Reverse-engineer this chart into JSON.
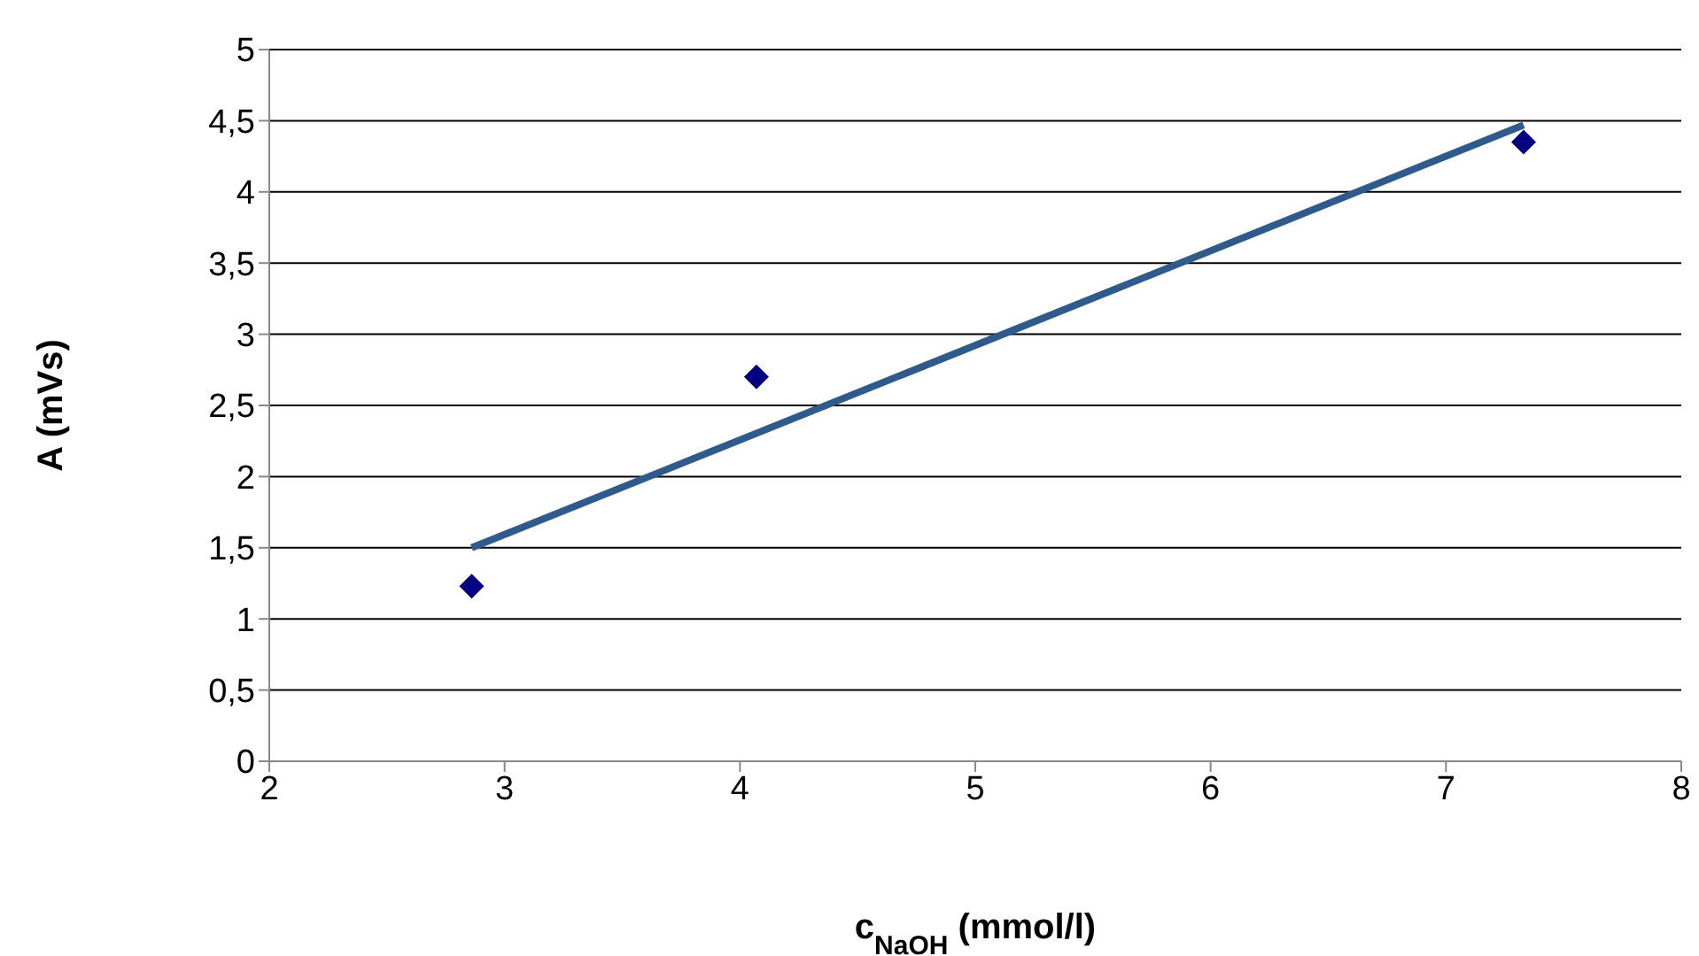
{
  "chart_data": {
    "type": "scatter",
    "xlabel": "c$_{NaOH}$ (mmol/l)",
    "ylabel": "A (mVs)",
    "xlim": [
      2,
      8
    ],
    "xticks": [
      2,
      3,
      4,
      5,
      6,
      7,
      8
    ],
    "ylim": [
      0,
      5
    ],
    "yticks": [
      0,
      {
        "value": 0.5,
        "label": "0,5"
      },
      1,
      {
        "value": 1.5,
        "label": "1,5"
      },
      2,
      {
        "value": 2.5,
        "label": "2,5"
      },
      3,
      {
        "value": 3.5,
        "label": "3,5"
      },
      4,
      {
        "value": 4.5,
        "label": "4,5"
      },
      5
    ],
    "grid": "y",
    "series": [
      {
        "color": "#000080",
        "marker": "diamond",
        "x": [
          2.86,
          4.07,
          7.33
        ],
        "values": [
          1.23,
          2.7,
          4.35
        ]
      },
      {
        "type": "line",
        "color": "#2f5b8c",
        "line_style": "solid",
        "x": [
          2.86,
          7.33
        ],
        "values": [
          1.5,
          4.47
        ]
      }
    ]
  }
}
